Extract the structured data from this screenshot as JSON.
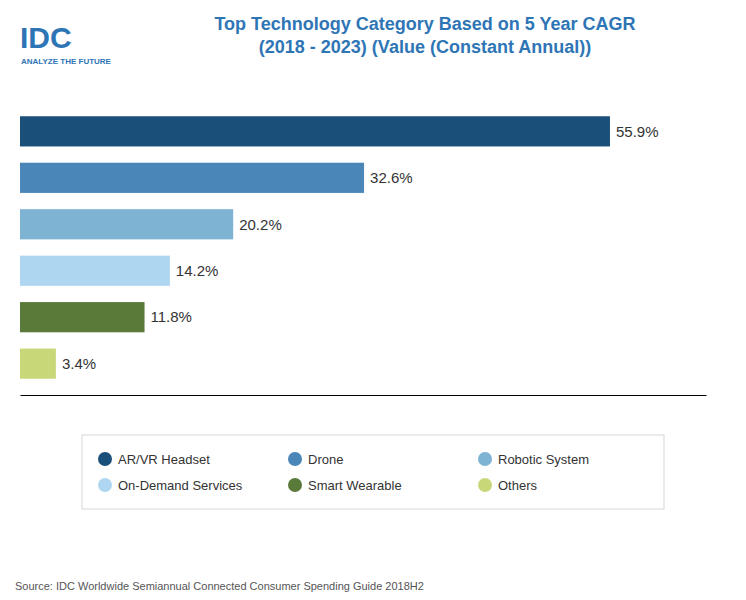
{
  "chart_data": {
    "type": "bar",
    "orientation": "horizontal",
    "title": "Top Technology Category Based on 5 Year CAGR\n(2018 - 2023) (Value (Constant Annual))",
    "categories": [
      "AR/VR Headset",
      "Drone",
      "Robotic System",
      "On-Demand Services",
      "Smart Wearable",
      "Others"
    ],
    "values": [
      55.9,
      32.6,
      20.2,
      14.2,
      11.8,
      3.4
    ],
    "value_labels": [
      "55.9%",
      "32.6%",
      "20.2%",
      "14.2%",
      "11.8%",
      "3.4%"
    ],
    "data_labels": true,
    "colors": [
      "#1a4f7a",
      "#4a86b8",
      "#7fb3d3",
      "#aed6f1",
      "#5a7a3a",
      "#c8d878"
    ],
    "xlim": [
      0,
      65
    ],
    "tick_labels": false,
    "grid": false,
    "legend": "bottom",
    "annotations": [
      "IDC",
      "ANALYZE THE FUTURE",
      "Source: IDC Worldwide Semiannual Connected Consumer Spending Guide 2018H2"
    ]
  }
}
